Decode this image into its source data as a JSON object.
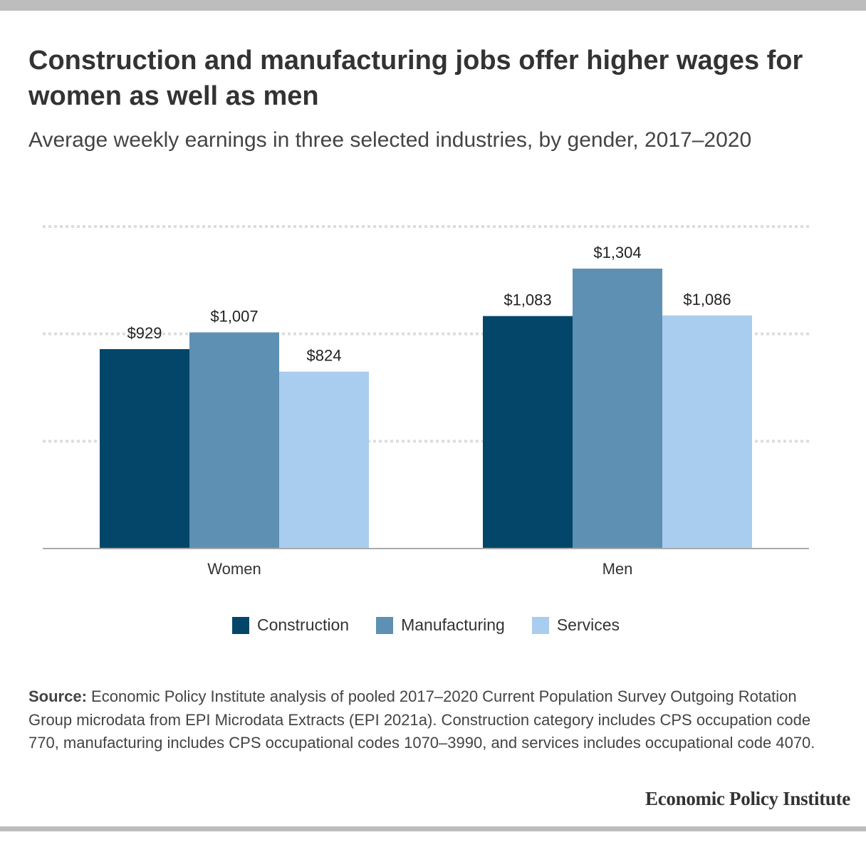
{
  "header": {
    "title": "Construction and manufacturing jobs offer higher wages for women as well as men",
    "subtitle": "Average weekly earnings in three selected industries, by gender, 2017–2020"
  },
  "chart_data": {
    "type": "bar",
    "title": "Construction and manufacturing jobs offer higher wages for women as well as men",
    "subtitle": "Average weekly earnings in three selected industries, by gender, 2017–2020",
    "categories": [
      "Women",
      "Men"
    ],
    "series": [
      {
        "name": "Construction",
        "values": [
          929,
          1083
        ],
        "labels": [
          "$929",
          "$1,083"
        ],
        "color": "#03466a"
      },
      {
        "name": "Manufacturing",
        "values": [
          1007,
          1304
        ],
        "labels": [
          "$1,007",
          "$1,304"
        ],
        "color": "#5e90b4"
      },
      {
        "name": "Services",
        "values": [
          824,
          1086
        ],
        "labels": [
          "$824",
          "$1,086"
        ],
        "color": "#a9cdee"
      }
    ],
    "ylim": [
      0,
      1500
    ],
    "grid": true,
    "legend": "bottom-center",
    "xlabel": "",
    "ylabel": ""
  },
  "source": {
    "label": "Source:",
    "text": "Economic Policy Institute analysis of pooled 2017–2020 Current Population Survey Outgoing Rotation Group microdata from EPI Microdata Extracts (EPI 2021a). Construction category includes CPS occupation code 770, manufacturing includes CPS occupational codes 1070–3990, and services includes occupational code 4070."
  },
  "brand": "Economic Policy Institute"
}
